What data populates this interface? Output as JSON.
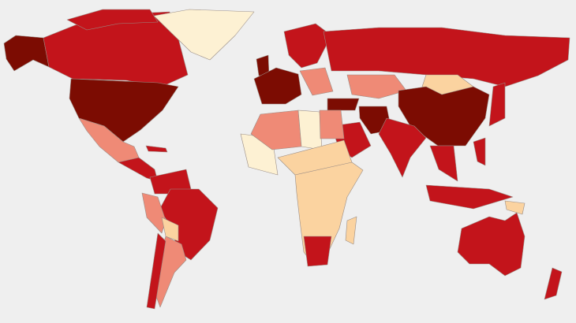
{
  "map": {
    "type": "choropleth-world",
    "background": "#efefef",
    "scale_colors": [
      "#fdf1d3",
      "#fbd3a0",
      "#ef8a76",
      "#c3141b",
      "#7c0c02"
    ],
    "border_color": "#9a8d86"
  }
}
